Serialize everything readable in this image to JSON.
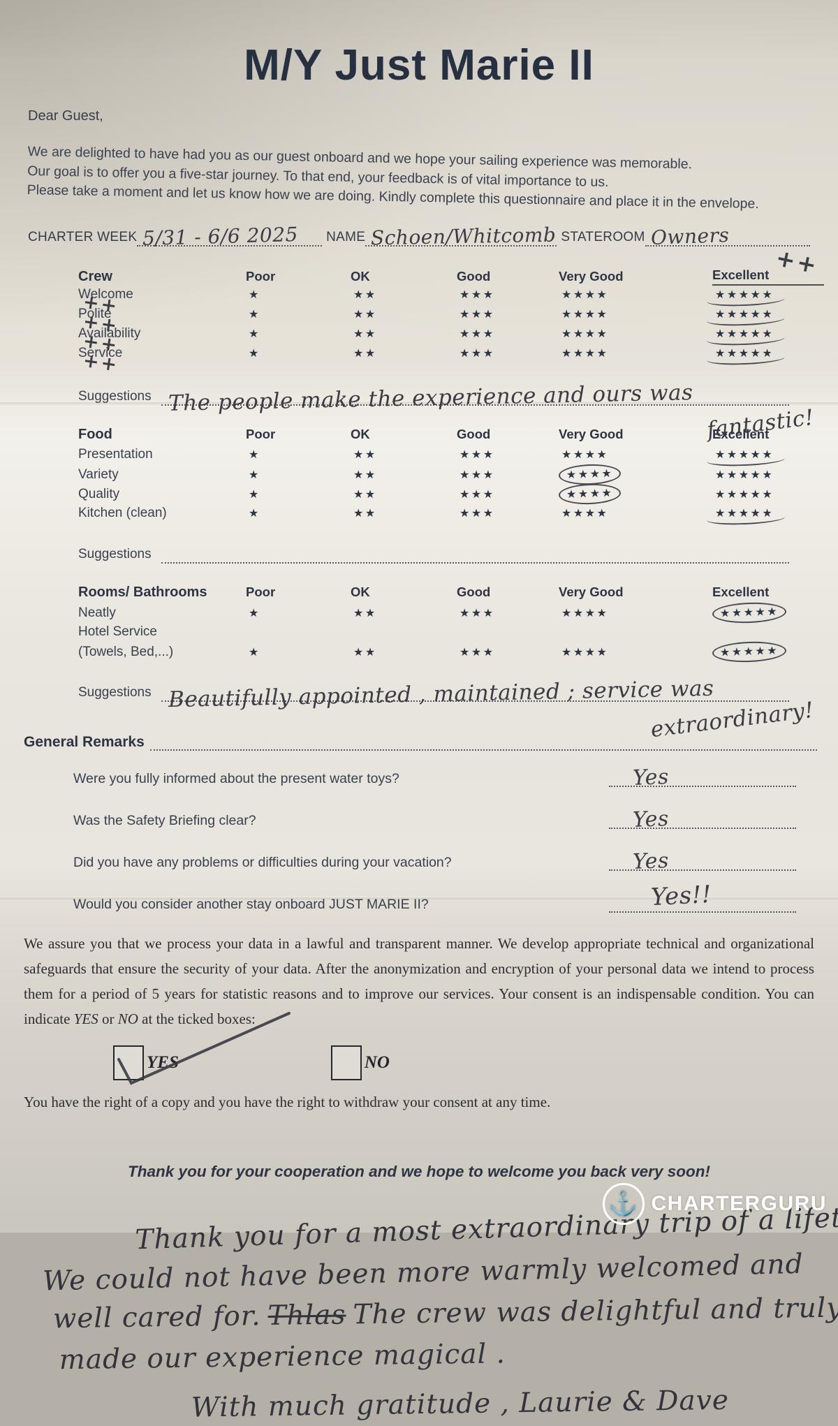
{
  "title": "M/Y Just Marie II",
  "greeting": "Dear Guest,",
  "intro_lines": [
    "We are delighted to have had you as our guest onboard and we hope your sailing experience was memorable.",
    "Our goal is to offer you a five-star journey. To that end, your feedback is of vital importance to us.",
    "Please take a moment and let us know how we are doing. Kindly complete this questionnaire and place it in the envelope."
  ],
  "header_fields": {
    "charter_week_label": "CHARTER WEEK",
    "charter_week_value": "5/31 - 6/6 2025",
    "name_label": "NAME",
    "name_value": "Schoen/Whitcomb",
    "stateroom_label": "STATEROOM",
    "stateroom_value": "Owners"
  },
  "rating_scale": {
    "columns": [
      "Poor",
      "OK",
      "Good",
      "Very Good",
      "Excellent"
    ],
    "stars": [
      "★",
      "★★",
      "★★★",
      "★★★★",
      "★★★★★"
    ]
  },
  "sections": [
    {
      "id": "crew",
      "name": "Crew",
      "header_annotation": "++",
      "excellent_underlined": true,
      "rows": [
        {
          "label": "Welcome",
          "selected": "Excellent",
          "mark": "underline",
          "annotation": "++"
        },
        {
          "label": "Polite",
          "selected": "Excellent",
          "mark": "underline",
          "annotation": "++"
        },
        {
          "label": "Availability",
          "selected": "Excellent",
          "mark": "underline",
          "annotation": "++"
        },
        {
          "label": "Service",
          "selected": "Excellent",
          "mark": "underline",
          "annotation": "++"
        }
      ],
      "suggestions": {
        "label": "Suggestions",
        "value": "The people make the experience and ours was",
        "overflow": "fantastic!"
      }
    },
    {
      "id": "food",
      "name": "Food",
      "rows": [
        {
          "label": "Presentation",
          "selected": "Excellent",
          "mark": "underline"
        },
        {
          "label": "Variety",
          "selected": "Very Good",
          "mark": "circle"
        },
        {
          "label": "Quality",
          "selected": "Very Good",
          "mark": "circle"
        },
        {
          "label": "Kitchen (clean)",
          "selected": "Excellent",
          "mark": "underline"
        }
      ],
      "suggestions": {
        "label": "Suggestions",
        "value": "",
        "overflow": ""
      }
    },
    {
      "id": "rooms",
      "name": "Rooms/ Bathrooms",
      "rows": [
        {
          "label": "Neatly",
          "selected": "Excellent",
          "mark": "circle"
        },
        {
          "label": "Hotel Service",
          "label_only": true
        },
        {
          "label": "(Towels, Bed,...)",
          "selected": "Excellent",
          "mark": "circle"
        }
      ],
      "suggestions": {
        "label": "Suggestions",
        "value": "Beautifully appointed , maintained ; service was",
        "overflow": "extraordinary!"
      }
    }
  ],
  "general_remarks": {
    "label": "General Remarks",
    "questions": [
      {
        "text": "Were you fully informed about the present water toys?",
        "answer": "Yes"
      },
      {
        "text": "Was the Safety Briefing clear?",
        "answer": "Yes"
      },
      {
        "text": "Did you have any problems or difficulties during your vacation?",
        "answer": "Yes"
      },
      {
        "text": "Would you consider another stay onboard JUST MARIE II?",
        "answer": "Yes!!"
      }
    ]
  },
  "privacy": {
    "body": "We assure you that we process your data in a lawful and transparent manner. We develop appropriate technical and organizational safeguards that ensure the security of your data. After the anonymization and encryption of your personal data we intend to process them for a period of 5 years for statistic reasons and to improve our services. Your consent is an indispensable condition. You can indicate ",
    "yes_word": "YES",
    "conj": " or ",
    "no_word": "NO",
    "tail": " at the ticked boxes:",
    "yes_checkbox_label": "YES",
    "no_checkbox_label": "NO",
    "yes_checked": true,
    "rights": "You have the right of a copy and you have the right to withdraw your consent at any time."
  },
  "closing": "Thank you for your cooperation and we hope to welcome you back very soon!",
  "handwritten_note": {
    "line1": "Thank you for a most extraordinary trip of a lifetime !",
    "line2": "We could not have been more warmly welcomed and",
    "line3_pre": "well cared for.",
    "line3_struck": "Thlas",
    "line3_post": "The crew was delightful and truly",
    "line4": "made our experience magical .",
    "signoff": "With much gratitude ,  Laurie & Dave"
  },
  "logo": {
    "icon": "anchor",
    "text": "CHARTERGURU"
  }
}
